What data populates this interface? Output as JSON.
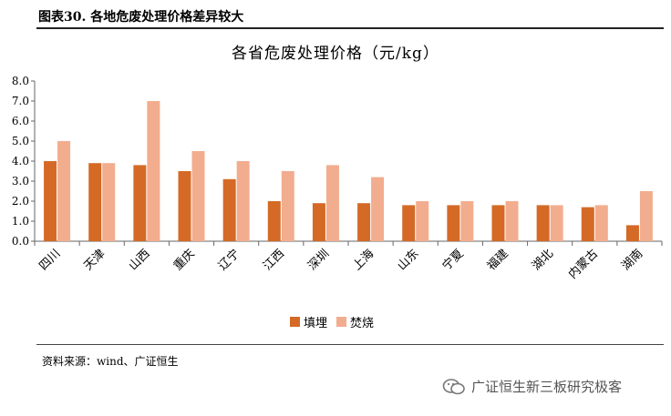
{
  "header": {
    "figure_label": "图表30. 各地危废处理价格差异较大"
  },
  "source_text": "资料来源：wind、广证恒生",
  "watermark_text": "广证恒生新三板研究极客",
  "colors": {
    "landfill": "#d46a26",
    "incineration": "#f2ad8e",
    "axis": "#666666"
  },
  "chart_data": {
    "type": "bar",
    "title": "各省危废处理价格（元/kg）",
    "xlabel": "",
    "ylabel": "",
    "ylim": [
      0,
      8
    ],
    "yticks": [
      0,
      1,
      2,
      3,
      4,
      5,
      6,
      7,
      8
    ],
    "grid": false,
    "legend_position": "bottom",
    "categories": [
      "四川",
      "天津",
      "山西",
      "重庆",
      "辽宁",
      "江西",
      "深圳",
      "上海",
      "山东",
      "宁夏",
      "福建",
      "湖北",
      "内蒙古",
      "湖南"
    ],
    "series": [
      {
        "name": "填埋",
        "values": [
          4.0,
          3.9,
          3.8,
          3.5,
          3.1,
          2.0,
          1.9,
          1.9,
          1.8,
          1.8,
          1.8,
          1.8,
          1.7,
          0.8
        ]
      },
      {
        "name": "焚烧",
        "values": [
          5.0,
          3.9,
          7.0,
          4.5,
          4.0,
          3.5,
          3.8,
          3.2,
          2.0,
          2.0,
          2.0,
          1.8,
          1.8,
          2.5
        ]
      }
    ]
  }
}
